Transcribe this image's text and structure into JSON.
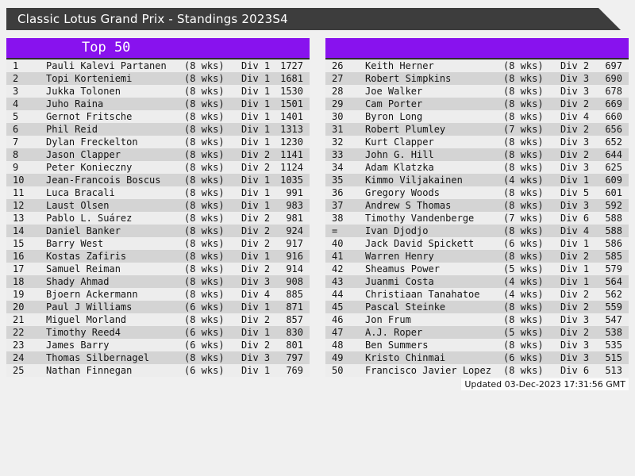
{
  "title": "Classic Lotus Grand Prix - Standings 2023S4",
  "colors": {
    "accent": "#8812ee",
    "titlebar": "#3d3d3d",
    "page-bg": "#f0f0f0",
    "row-odd": "#ededed",
    "row-even": "#d4d4d4",
    "header-border": "#2e2e2e",
    "text": "#141414",
    "footer-bg": "#fdfdfd"
  },
  "panels": {
    "left": {
      "header": "Top 50",
      "rows": [
        {
          "rank": "1",
          "name": "Pauli Kalevi Partanen",
          "weeks": "(8 wks)",
          "division": "Div 1",
          "score": "1727"
        },
        {
          "rank": "2",
          "name": "Topi Korteniemi",
          "weeks": "(8 wks)",
          "division": "Div 1",
          "score": "1681"
        },
        {
          "rank": "3",
          "name": "Jukka Tolonen",
          "weeks": "(8 wks)",
          "division": "Div 1",
          "score": "1530"
        },
        {
          "rank": "4",
          "name": "Juho Raina",
          "weeks": "(8 wks)",
          "division": "Div 1",
          "score": "1501"
        },
        {
          "rank": "5",
          "name": "Gernot Fritsche",
          "weeks": "(8 wks)",
          "division": "Div 1",
          "score": "1401"
        },
        {
          "rank": "6",
          "name": "Phil Reid",
          "weeks": "(8 wks)",
          "division": "Div 1",
          "score": "1313"
        },
        {
          "rank": "7",
          "name": "Dylan Freckelton",
          "weeks": "(8 wks)",
          "division": "Div 1",
          "score": "1230"
        },
        {
          "rank": "8",
          "name": "Jason Clapper",
          "weeks": "(8 wks)",
          "division": "Div 2",
          "score": "1141"
        },
        {
          "rank": "9",
          "name": "Peter Konieczny",
          "weeks": "(8 wks)",
          "division": "Div 2",
          "score": "1124"
        },
        {
          "rank": "10",
          "name": "Jean-Francois Boscus",
          "weeks": "(8 wks)",
          "division": "Div 1",
          "score": "1035"
        },
        {
          "rank": "11",
          "name": "Luca Bracali",
          "weeks": "(8 wks)",
          "division": "Div 1",
          "score": "991"
        },
        {
          "rank": "12",
          "name": "Laust Olsen",
          "weeks": "(8 wks)",
          "division": "Div 1",
          "score": "983"
        },
        {
          "rank": "13",
          "name": "Pablo L. Suárez",
          "weeks": "(8 wks)",
          "division": "Div 2",
          "score": "981"
        },
        {
          "rank": "14",
          "name": "Daniel Banker",
          "weeks": "(8 wks)",
          "division": "Div 2",
          "score": "924"
        },
        {
          "rank": "15",
          "name": "Barry West",
          "weeks": "(8 wks)",
          "division": "Div 2",
          "score": "917"
        },
        {
          "rank": "16",
          "name": "Kostas Zafiris",
          "weeks": "(8 wks)",
          "division": "Div 1",
          "score": "916"
        },
        {
          "rank": "17",
          "name": "Samuel Reiman",
          "weeks": "(8 wks)",
          "division": "Div 2",
          "score": "914"
        },
        {
          "rank": "18",
          "name": "Shady Ahmad",
          "weeks": "(8 wks)",
          "division": "Div 3",
          "score": "908"
        },
        {
          "rank": "19",
          "name": "Bjoern Ackermann",
          "weeks": "(8 wks)",
          "division": "Div 4",
          "score": "885"
        },
        {
          "rank": "20",
          "name": "Paul J Williams",
          "weeks": "(6 wks)",
          "division": "Div 1",
          "score": "871"
        },
        {
          "rank": "21",
          "name": "Miguel Morland",
          "weeks": "(8 wks)",
          "division": "Div 2",
          "score": "857"
        },
        {
          "rank": "22",
          "name": "Timothy Reed4",
          "weeks": "(6 wks)",
          "division": "Div 1",
          "score": "830"
        },
        {
          "rank": "23",
          "name": "James Barry",
          "weeks": "(6 wks)",
          "division": "Div 2",
          "score": "801"
        },
        {
          "rank": "24",
          "name": "Thomas Silbernagel",
          "weeks": "(8 wks)",
          "division": "Div 3",
          "score": "797"
        },
        {
          "rank": "25",
          "name": "Nathan Finnegan",
          "weeks": "(6 wks)",
          "division": "Div 1",
          "score": "769"
        }
      ]
    },
    "right": {
      "header": "",
      "rows": [
        {
          "rank": "26",
          "name": "Keith Herner",
          "weeks": "(8 wks)",
          "division": "Div 2",
          "score": "697"
        },
        {
          "rank": "27",
          "name": "Robert Simpkins",
          "weeks": "(8 wks)",
          "division": "Div 3",
          "score": "690"
        },
        {
          "rank": "28",
          "name": "Joe Walker",
          "weeks": "(8 wks)",
          "division": "Div 3",
          "score": "678"
        },
        {
          "rank": "29",
          "name": "Cam Porter",
          "weeks": "(8 wks)",
          "division": "Div 2",
          "score": "669"
        },
        {
          "rank": "30",
          "name": "Byron Long",
          "weeks": "(8 wks)",
          "division": "Div 4",
          "score": "660"
        },
        {
          "rank": "31",
          "name": "Robert Plumley",
          "weeks": "(7 wks)",
          "division": "Div 2",
          "score": "656"
        },
        {
          "rank": "32",
          "name": "Kurt Clapper",
          "weeks": "(8 wks)",
          "division": "Div 3",
          "score": "652"
        },
        {
          "rank": "33",
          "name": "John G. Hill",
          "weeks": "(8 wks)",
          "division": "Div 2",
          "score": "644"
        },
        {
          "rank": "34",
          "name": "Adam Klatzka",
          "weeks": "(8 wks)",
          "division": "Div 3",
          "score": "625"
        },
        {
          "rank": "35",
          "name": "Kimmo Viljakainen",
          "weeks": "(4 wks)",
          "division": "Div 1",
          "score": "609"
        },
        {
          "rank": "36",
          "name": "Gregory Woods",
          "weeks": "(8 wks)",
          "division": "Div 5",
          "score": "601"
        },
        {
          "rank": "37",
          "name": "Andrew S Thomas",
          "weeks": "(8 wks)",
          "division": "Div 3",
          "score": "592"
        },
        {
          "rank": "38",
          "name": "Timothy Vandenberge",
          "weeks": "(7 wks)",
          "division": "Div 6",
          "score": "588"
        },
        {
          "rank": "=",
          "name": "Ivan Djodjo",
          "weeks": "(8 wks)",
          "division": "Div 4",
          "score": "588"
        },
        {
          "rank": "40",
          "name": "Jack David Spickett",
          "weeks": "(6 wks)",
          "division": "Div 1",
          "score": "586"
        },
        {
          "rank": "41",
          "name": "Warren Henry",
          "weeks": "(8 wks)",
          "division": "Div 2",
          "score": "585"
        },
        {
          "rank": "42",
          "name": "Sheamus Power",
          "weeks": "(5 wks)",
          "division": "Div 1",
          "score": "579"
        },
        {
          "rank": "43",
          "name": "Juanmi Costa",
          "weeks": "(4 wks)",
          "division": "Div 1",
          "score": "564"
        },
        {
          "rank": "44",
          "name": "Christiaan Tanahatoe",
          "weeks": "(4 wks)",
          "division": "Div 2",
          "score": "562"
        },
        {
          "rank": "45",
          "name": "Pascal Steinke",
          "weeks": "(8 wks)",
          "division": "Div 2",
          "score": "559"
        },
        {
          "rank": "46",
          "name": "Jon Frum",
          "weeks": "(8 wks)",
          "division": "Div 3",
          "score": "547"
        },
        {
          "rank": "47",
          "name": "A.J. Roper",
          "weeks": "(5 wks)",
          "division": "Div 2",
          "score": "538"
        },
        {
          "rank": "48",
          "name": "Ben Summers",
          "weeks": "(8 wks)",
          "division": "Div 3",
          "score": "535"
        },
        {
          "rank": "49",
          "name": "Kristo Chinmai",
          "weeks": "(6 wks)",
          "division": "Div 3",
          "score": "515"
        },
        {
          "rank": "50",
          "name": "Francisco Javier Lopez",
          "weeks": "(8 wks)",
          "division": "Div 6",
          "score": "513"
        }
      ]
    }
  },
  "footer": {
    "updated": "Updated 03-Dec-2023 17:31:56 GMT"
  }
}
